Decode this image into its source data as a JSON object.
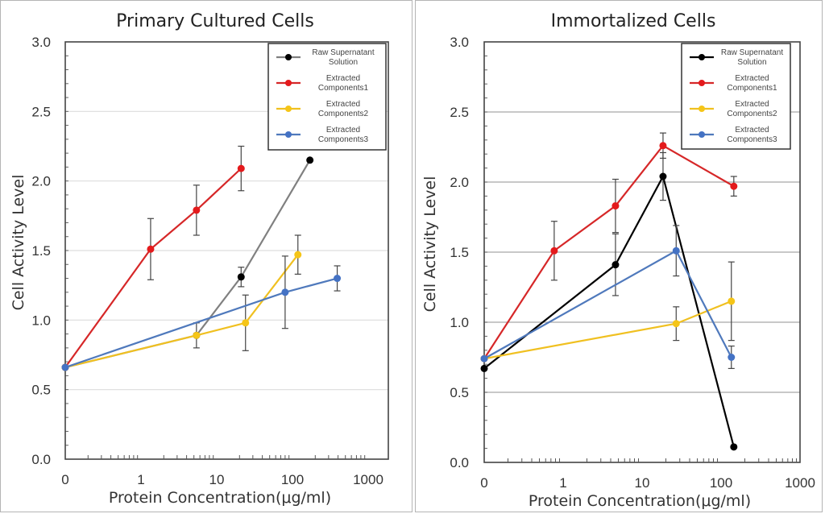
{
  "chart_data": [
    {
      "type": "line",
      "title": "Primary Cultured Cells",
      "xlabel": "Protein Concentration(μg/ml)",
      "ylabel": "Cell Activity Level",
      "xscale": "log",
      "xlim": [
        0.1,
        1000
      ],
      "xticks": [
        "0",
        "1",
        "10",
        "100",
        "1000"
      ],
      "ylim": [
        0,
        3.0
      ],
      "yticks": [
        "0.0",
        "0.5",
        "1.0",
        "1.5",
        "2.0",
        "2.5",
        "3.0"
      ],
      "grid": "horizontal",
      "legend": "top-right",
      "series": [
        {
          "name": "Raw Supernatant Solution",
          "legend": [
            "Raw Supernatant",
            "Solution"
          ],
          "color": "#000000",
          "line_color": "#808080",
          "x": [
            0.1,
            5.4,
            21,
            170
          ],
          "y": [
            0.66,
            0.89,
            1.31,
            2.15
          ],
          "err": [
            0,
            0.09,
            0.07,
            0
          ]
        },
        {
          "name": "Extracted Components1",
          "legend": [
            "Extracted",
            "Components1"
          ],
          "color": "#e41a1c",
          "line_color": "#d62728",
          "x": [
            0.1,
            1.34,
            5.4,
            21
          ],
          "y": [
            0.66,
            1.51,
            1.79,
            2.09
          ],
          "err": [
            0,
            0.22,
            0.18,
            0.16
          ]
        },
        {
          "name": "Extracted Components2",
          "legend": [
            "Extracted",
            "Components2"
          ],
          "color": "#f5c518",
          "line_color": "#f0c020",
          "x": [
            0.1,
            5.4,
            24,
            118
          ],
          "y": [
            0.66,
            0.89,
            0.98,
            1.47
          ],
          "err": [
            0,
            0,
            0.2,
            0.14
          ]
        },
        {
          "name": "Extracted Components3",
          "legend": [
            "Extracted",
            "Components3"
          ],
          "color": "#4472c4",
          "line_color": "#4f79bc",
          "x": [
            0.1,
            80,
            390
          ],
          "y": [
            0.66,
            1.2,
            1.3
          ],
          "err": [
            0,
            0.26,
            0.09
          ]
        }
      ]
    },
    {
      "type": "line",
      "title": "Immortalized Cells",
      "xlabel": "Protein Concentration(μg/ml)",
      "ylabel": "Cell Activity Level",
      "xscale": "log",
      "xlim": [
        0.1,
        1000
      ],
      "xticks": [
        "0",
        "1",
        "10",
        "100",
        "1000"
      ],
      "ylim": [
        0,
        3.0
      ],
      "yticks": [
        "0.0",
        "0.5",
        "1.0",
        "1.5",
        "2.0",
        "2.5",
        "3.0"
      ],
      "grid": "horizontal",
      "legend": "top-right",
      "series": [
        {
          "name": "Raw Supernatant Solution",
          "legend": [
            "Raw Supernatant",
            "Solution"
          ],
          "color": "#000000",
          "line_color": "#000000",
          "x": [
            0.1,
            4.6,
            18.4,
            145
          ],
          "y": [
            0.67,
            1.41,
            2.04,
            0.11
          ],
          "err": [
            0,
            0.22,
            0.17,
            0
          ]
        },
        {
          "name": "Extracted Components1",
          "legend": [
            "Extracted",
            "Components1"
          ],
          "color": "#e41a1c",
          "line_color": "#d62728",
          "x": [
            0.1,
            0.77,
            4.6,
            18.4,
            145
          ],
          "y": [
            0.74,
            1.51,
            1.83,
            2.26,
            1.97
          ],
          "err": [
            0,
            0.21,
            0.19,
            0.09,
            0.07
          ]
        },
        {
          "name": "Extracted Components2",
          "legend": [
            "Extracted",
            "Components2"
          ],
          "color": "#f5c518",
          "line_color": "#f0c020",
          "x": [
            0.1,
            27,
            135
          ],
          "y": [
            0.74,
            0.99,
            1.15
          ],
          "err": [
            0,
            0.12,
            0.28
          ]
        },
        {
          "name": "Extracted Components3",
          "legend": [
            "Extracted",
            "Components3"
          ],
          "color": "#4472c4",
          "line_color": "#4f79bc",
          "x": [
            0.1,
            27,
            135
          ],
          "y": [
            0.74,
            1.51,
            0.75
          ],
          "err": [
            0,
            0.18,
            0.08
          ]
        }
      ]
    }
  ]
}
